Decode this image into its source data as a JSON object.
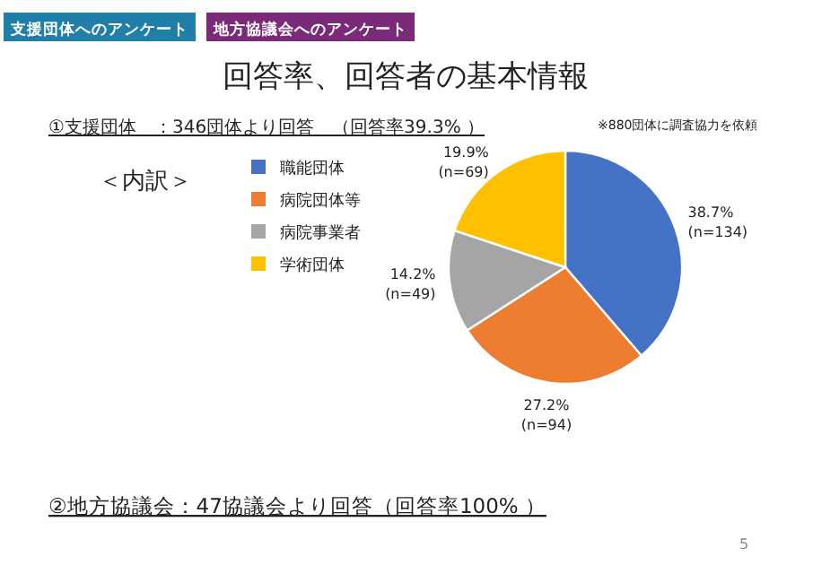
{
  "chart_data": {
    "type": "pie",
    "title": "回答率、回答者の基本情報",
    "subtitle": "①支援団体　：346団体より回答　（回答率39.3% ）",
    "legend_title": "＜内訳＞",
    "legend": "left",
    "categories": [
      "職能団体",
      "病院団体等",
      "病院事業者",
      "学術団体"
    ],
    "values": [
      38.7,
      27.2,
      14.2,
      19.9
    ],
    "value_labels": [
      "38.7%\n(n=134)",
      "27.2%\n(n=94)",
      "14.2%\n(n=49)",
      "19.9%\n(n=69)"
    ],
    "colors": [
      "#4472c4",
      "#ed7d31",
      "#a5a5a5",
      "#ffc000"
    ],
    "annotations": [
      "支援団体へのアンケート",
      "地方協議会へのアンケート",
      "※880団体に調査協力を依頼",
      "②地方協議会：47協議会より回答（回答率100% ）",
      "5"
    ]
  }
}
